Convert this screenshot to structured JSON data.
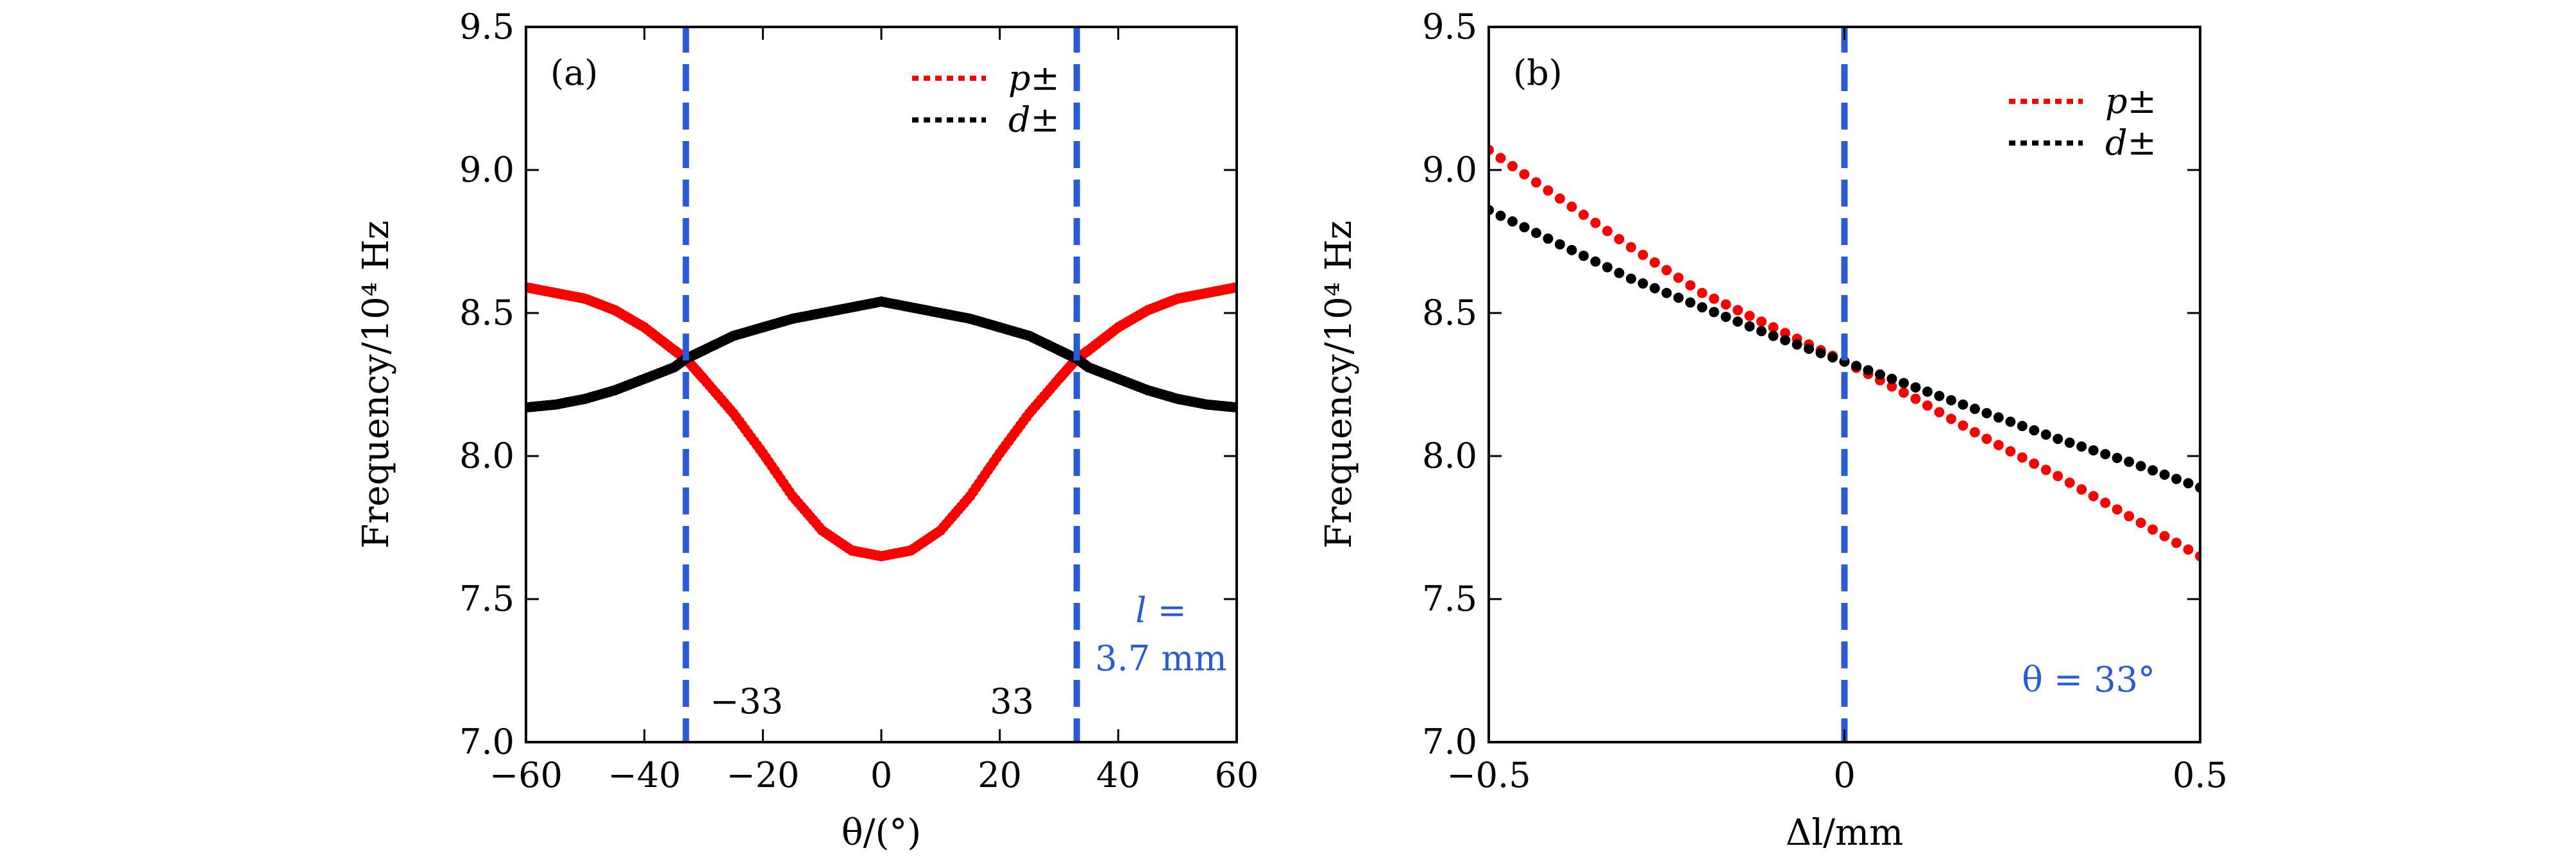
{
  "chart_data": [
    {
      "type": "scatter",
      "panel_label": "(a)",
      "xlabel": "θ/(°)",
      "ylabel": "Frequency/10⁴ Hz",
      "xlim": [
        -60,
        60
      ],
      "ylim": [
        7.0,
        9.5
      ],
      "xticks": [
        "−60",
        "−40",
        "−20",
        "0",
        "20",
        "40",
        "60"
      ],
      "xtick_values": [
        -60,
        -40,
        -20,
        0,
        20,
        40,
        60
      ],
      "yticks": [
        "7.0",
        "7.5",
        "8.0",
        "8.5",
        "9.0",
        "9.5"
      ],
      "ytick_values": [
        7.0,
        7.5,
        8.0,
        8.5,
        9.0,
        9.5
      ],
      "series": [
        {
          "name": "p±",
          "color": "#ff0000",
          "x": [
            -60,
            -55,
            -50,
            -45,
            -40,
            -35,
            -33,
            -30,
            -25,
            -20,
            -15,
            -10,
            -5,
            0,
            5,
            10,
            15,
            20,
            25,
            30,
            33,
            35,
            40,
            45,
            50,
            55,
            60
          ],
          "y": [
            8.59,
            8.57,
            8.55,
            8.51,
            8.45,
            8.37,
            8.34,
            8.27,
            8.15,
            8.01,
            7.86,
            7.74,
            7.67,
            7.65,
            7.67,
            7.74,
            7.86,
            8.01,
            8.15,
            8.27,
            8.34,
            8.37,
            8.45,
            8.51,
            8.55,
            8.57,
            8.59
          ]
        },
        {
          "name": "d±",
          "color": "#000000",
          "x": [
            -60,
            -55,
            -50,
            -45,
            -40,
            -35,
            -33,
            -30,
            -25,
            -20,
            -15,
            -10,
            -5,
            0,
            5,
            10,
            15,
            20,
            25,
            30,
            33,
            35,
            40,
            45,
            50,
            55,
            60
          ],
          "y": [
            8.17,
            8.18,
            8.2,
            8.23,
            8.27,
            8.31,
            8.34,
            8.37,
            8.42,
            8.45,
            8.48,
            8.5,
            8.52,
            8.54,
            8.52,
            8.5,
            8.48,
            8.45,
            8.42,
            8.37,
            8.34,
            8.31,
            8.27,
            8.23,
            8.2,
            8.18,
            8.17
          ]
        }
      ],
      "vlines": [
        -33,
        33
      ],
      "vline_color": "#2a5bd7",
      "annotations": {
        "left_cross": "−33",
        "right_cross": "33",
        "param_line1": "l =",
        "param_line2": "3.7 mm"
      },
      "legend_position": "top-right",
      "grid": false
    },
    {
      "type": "scatter",
      "panel_label": "(b)",
      "xlabel": "Δl/mm",
      "ylabel": "Frequency/10⁴ Hz",
      "xlim": [
        -0.5,
        0.5
      ],
      "ylim": [
        7.0,
        9.5
      ],
      "xticks": [
        "−0.5",
        "0",
        "0.5"
      ],
      "xtick_values": [
        -0.5,
        0,
        0.5
      ],
      "yticks": [
        "7.0",
        "7.5",
        "8.0",
        "8.5",
        "9.0",
        "9.5"
      ],
      "ytick_values": [
        7.0,
        7.5,
        8.0,
        8.5,
        9.0,
        9.5
      ],
      "series": [
        {
          "name": "p±",
          "color": "#ff0000",
          "x": [
            -0.5,
            -0.4,
            -0.3,
            -0.2,
            -0.1,
            0,
            0.1,
            0.2,
            0.3,
            0.4,
            0.5
          ],
          "y": [
            9.07,
            8.9,
            8.73,
            8.57,
            8.45,
            8.33,
            8.2,
            8.06,
            7.93,
            7.79,
            7.65
          ]
        },
        {
          "name": "d±",
          "color": "#000000",
          "x": [
            -0.5,
            -0.4,
            -0.3,
            -0.2,
            -0.1,
            0,
            0.1,
            0.2,
            0.3,
            0.4,
            0.5
          ],
          "y": [
            8.86,
            8.74,
            8.62,
            8.52,
            8.42,
            8.33,
            8.24,
            8.15,
            8.06,
            7.98,
            7.89
          ]
        }
      ],
      "vlines": [
        0
      ],
      "vline_color": "#2a5bd7",
      "annotations": {
        "param": "θ = 33°"
      },
      "legend_position": "top-right",
      "grid": false
    }
  ]
}
